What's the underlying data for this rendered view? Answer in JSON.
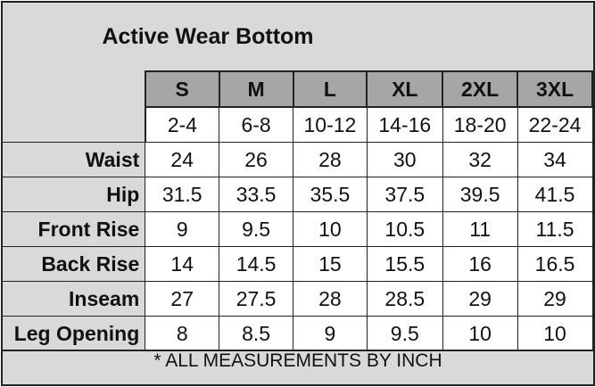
{
  "title": "Active Wear Bottom",
  "sizes": [
    "S",
    "M",
    "L",
    "XL",
    "2XL",
    "3XL"
  ],
  "ranges": [
    "2-4",
    "6-8",
    "10-12",
    "14-16",
    "18-20",
    "22-24"
  ],
  "rows": [
    {
      "label": "Waist",
      "values": [
        "24",
        "26",
        "28",
        "30",
        "32",
        "34"
      ]
    },
    {
      "label": "Hip",
      "values": [
        "31.5",
        "33.5",
        "35.5",
        "37.5",
        "39.5",
        "41.5"
      ]
    },
    {
      "label": "Front Rise",
      "values": [
        "9",
        "9.5",
        "10",
        "10.5",
        "11",
        "11.5"
      ]
    },
    {
      "label": "Back Rise",
      "values": [
        "14",
        "14.5",
        "15",
        "15.5",
        "16",
        "16.5"
      ]
    },
    {
      "label": "Inseam",
      "values": [
        "27",
        "27.5",
        "28",
        "28.5",
        "29",
        "29"
      ]
    },
    {
      "label": "Leg Opening",
      "values": [
        "8",
        "8.5",
        "9",
        "9.5",
        "10",
        "10"
      ]
    }
  ],
  "footer": "* ALL MEASUREMENTS BY INCH",
  "colors": {
    "background": "#d9d9d9",
    "header": "#a6a6a6",
    "cell": "#ffffff",
    "border": "#222222"
  }
}
